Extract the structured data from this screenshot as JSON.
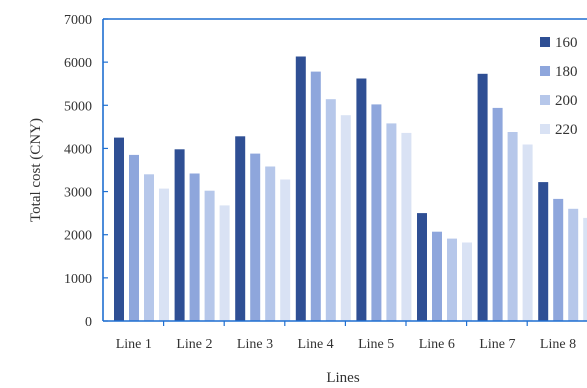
{
  "chart_data": {
    "type": "bar",
    "xlabel": "Lines",
    "ylabel": "Total cost (CNY)",
    "categories": [
      "Line 1",
      "Line 2",
      "Line 3",
      "Line 4",
      "Line 5",
      "Line 6",
      "Line 7",
      "Line 8"
    ],
    "ylim": [
      0,
      7000
    ],
    "yticks": [
      0,
      1000,
      2000,
      3000,
      4000,
      5000,
      6000,
      7000
    ],
    "grid": false,
    "legend_position": "right",
    "series": [
      {
        "name": "160",
        "color": "#2f4f94",
        "values": [
          4250,
          3980,
          4280,
          6130,
          5620,
          2500,
          5730,
          3220
        ]
      },
      {
        "name": "180",
        "color": "#8ea6dc",
        "values": [
          3850,
          3420,
          3880,
          5780,
          5020,
          2070,
          4940,
          2830
        ]
      },
      {
        "name": "200",
        "color": "#b6c7ea",
        "values": [
          3400,
          3020,
          3580,
          5140,
          4580,
          1910,
          4380,
          2600
        ]
      },
      {
        "name": "220",
        "color": "#d9e2f4",
        "values": [
          3070,
          2680,
          3280,
          4770,
          4360,
          1820,
          4090,
          2390
        ]
      }
    ],
    "axis_color": "#1f6fd1"
  }
}
